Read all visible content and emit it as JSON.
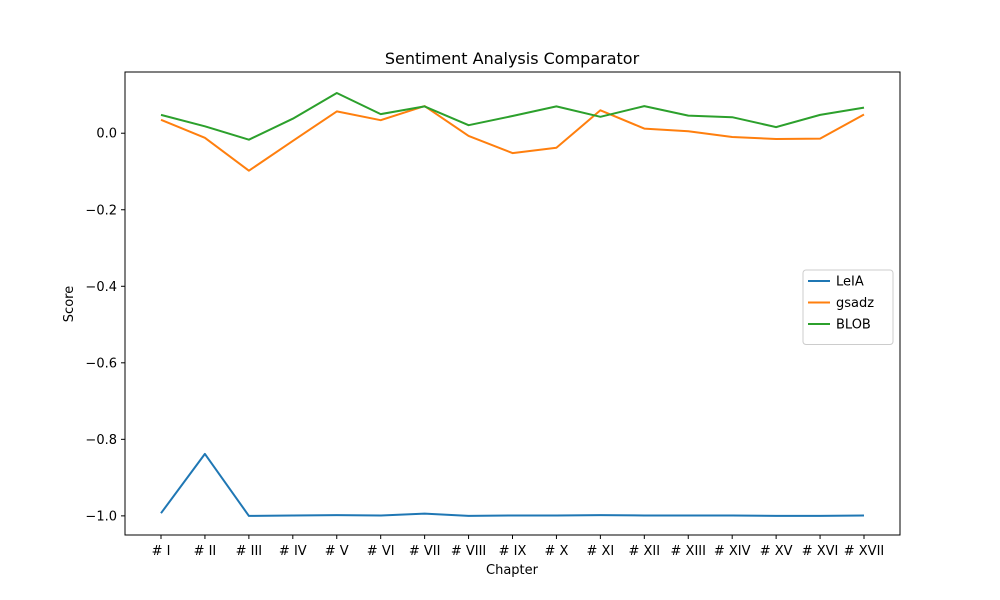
{
  "chart_data": {
    "type": "line",
    "title": "Sentiment Analysis Comparator",
    "xlabel": "Chapter",
    "ylabel": "Score",
    "categories": [
      "# I",
      "# II",
      "# III",
      "# IV",
      "# V",
      "# VI",
      "# VII",
      "# VIII",
      "# IX",
      "# X",
      "# XI",
      "# XII",
      "# XIII",
      "# XIV",
      "# XV",
      "# XVI",
      "# XVII"
    ],
    "ylim": [
      -1.05,
      0.16
    ],
    "yticks": [
      0.0,
      -0.2,
      -0.4,
      -0.6,
      -0.8,
      -1.0
    ],
    "ytick_labels": [
      "0.0",
      "−0.2",
      "−0.4",
      "−0.6",
      "−0.8",
      "−1.0"
    ],
    "legend_position": "center-right",
    "grid": false,
    "series": [
      {
        "name": "LeIA",
        "color": "#1f77b4",
        "values": [
          -0.993,
          -0.838,
          -1.0,
          -0.999,
          -0.998,
          -0.999,
          -0.994,
          -1.0,
          -0.999,
          -0.999,
          -0.998,
          -0.999,
          -0.999,
          -0.999,
          -1.0,
          -1.0,
          -0.999
        ]
      },
      {
        "name": "gsadz",
        "color": "#ff7f0e",
        "values": [
          0.035,
          -0.012,
          -0.098,
          -0.02,
          0.057,
          0.034,
          0.071,
          -0.007,
          -0.052,
          -0.038,
          0.06,
          0.012,
          0.005,
          -0.01,
          -0.015,
          -0.014,
          0.049
        ]
      },
      {
        "name": "BLOB",
        "color": "#2ca02c",
        "values": [
          0.048,
          0.018,
          -0.017,
          0.038,
          0.105,
          0.05,
          0.07,
          0.021,
          0.045,
          0.07,
          0.043,
          0.071,
          0.046,
          0.042,
          0.016,
          0.048,
          0.067
        ]
      }
    ]
  }
}
